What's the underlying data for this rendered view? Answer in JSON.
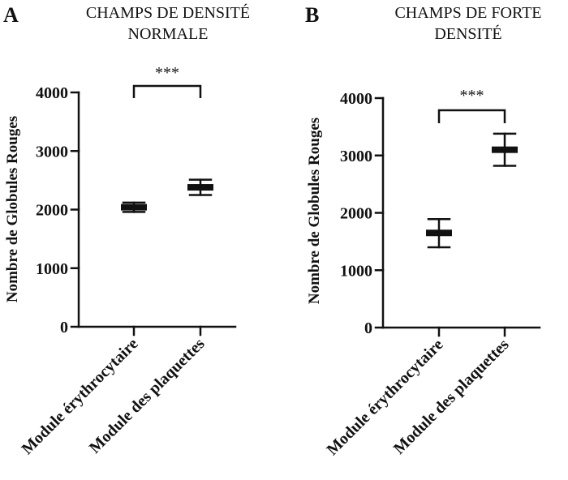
{
  "chart_data": [
    {
      "type": "scatter",
      "panel_label": "A",
      "title": [
        "CHAMPS DE DENSITÉ",
        "NORMALE"
      ],
      "ylabel": "Nombre de Globules Rouges",
      "ylim": [
        0,
        4000
      ],
      "yticks": [
        "0",
        "1000",
        "2000",
        "3000",
        "4000"
      ],
      "categories": [
        "Module érythrocytaire",
        "Module des plaquettes"
      ],
      "mean": [
        2040,
        2380
      ],
      "error_low": [
        1960,
        2250
      ],
      "error_high": [
        2120,
        2510
      ],
      "significance": "***"
    },
    {
      "type": "scatter",
      "panel_label": "B",
      "title": [
        "CHAMPS DE FORTE",
        "DENSITÉ"
      ],
      "ylabel": "Nombre de Globules Rouges",
      "ylim": [
        0,
        4000
      ],
      "yticks": [
        "0",
        "1000",
        "2000",
        "3000",
        "4000"
      ],
      "categories": [
        "Module érythrocytaire",
        "Module des plaquettes"
      ],
      "mean": [
        1650,
        3100
      ],
      "error_low": [
        1400,
        2820
      ],
      "error_high": [
        1890,
        3380
      ],
      "significance": "***"
    }
  ]
}
